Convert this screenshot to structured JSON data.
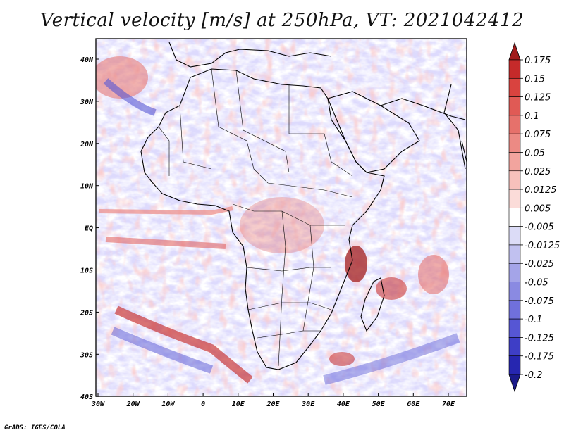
{
  "title": "Vertical velocity [m/s] at 250hPa, VT: 2021042412",
  "credit": "GrADS: IGES/COLA",
  "map": {
    "lat_ticks": [
      "40N",
      "30N",
      "20N",
      "10N",
      "EQ",
      "10S",
      "20S",
      "30S",
      "40S"
    ],
    "lon_ticks": [
      "30W",
      "20W",
      "10W",
      "0",
      "10E",
      "20E",
      "30E",
      "40E",
      "50E",
      "60E",
      "70E"
    ],
    "field_name": "Vertical velocity",
    "level": "250hPa"
  },
  "colorbar": {
    "labels": [
      "0.175",
      "0.15",
      "0.125",
      "0.1",
      "0.075",
      "0.05",
      "0.025",
      "0.0125",
      "0.005",
      "-0.005",
      "-0.0125",
      "-0.025",
      "-0.05",
      "-0.075",
      "-0.1",
      "-0.125",
      "-0.175",
      "-0.2"
    ],
    "colors": [
      "#a11b1b",
      "#c52a2a",
      "#d9433f",
      "#e05a55",
      "#e6716b",
      "#ec8a84",
      "#f2a49e",
      "#f7c1bc",
      "#fbdcd9",
      "#ffffff",
      "#dcdcf7",
      "#c1c1f0",
      "#a4a4e8",
      "#8a8ae2",
      "#7070dc",
      "#5656d4",
      "#3e3ec6",
      "#2626b0",
      "#1a1a8a"
    ]
  }
}
